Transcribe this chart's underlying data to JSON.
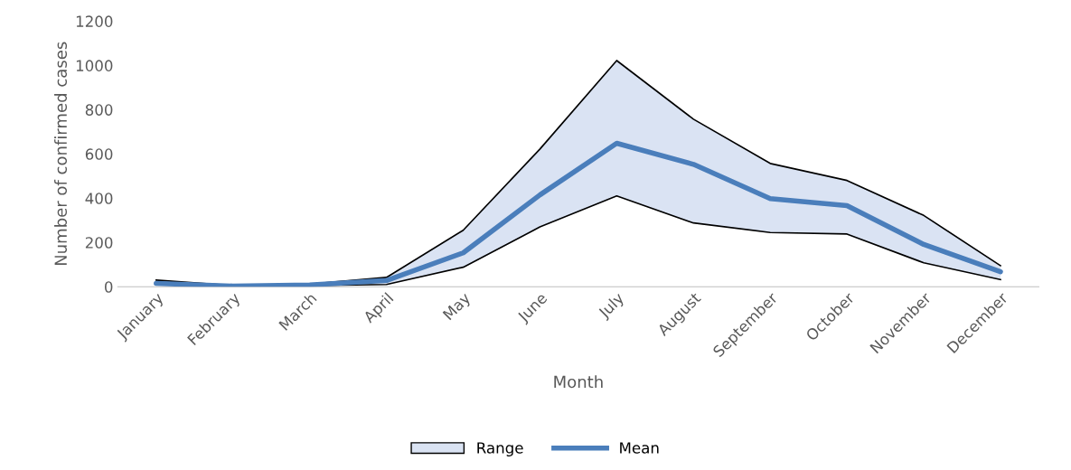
{
  "chart_data": {
    "type": "area",
    "stacked": true,
    "xlabel": "Month",
    "ylabel": "Number of confirmed cases",
    "categories": [
      "January",
      "February",
      "March",
      "April",
      "May",
      "June",
      "July",
      "August",
      "September",
      "October",
      "November",
      "December"
    ],
    "series": [
      {
        "color": "#ffffff",
        "values": [
          10,
          2,
          5,
          10,
          88,
          270,
          410,
          288,
          245,
          238,
          108,
          32
        ]
      },
      {
        "name": "Range",
        "color": "#dae3f3",
        "values": [
          20,
          3,
          7,
          32,
          167,
          352,
          612,
          469,
          312,
          242,
          214,
          63
        ]
      },
      {
        "name": "Mean",
        "type": "line",
        "color": "#4a7ebb",
        "values": [
          15,
          3,
          8,
          28,
          153,
          415,
          648,
          553,
          398,
          366,
          191,
          68
        ]
      }
    ],
    "ylim": [
      0,
      1200
    ],
    "yticks": [
      0,
      200,
      400,
      600,
      800,
      1000,
      1200
    ],
    "grid": false,
    "legend": "bottom",
    "marker": "none",
    "line_style": "solid"
  }
}
